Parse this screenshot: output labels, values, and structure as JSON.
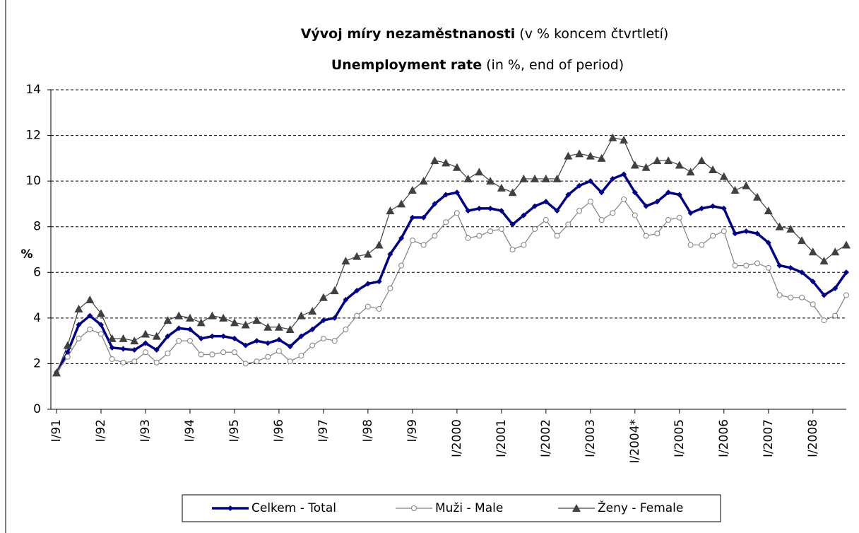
{
  "chart_data": {
    "type": "line",
    "title": "Vývoj míry nezaměstnanosti",
    "title_note": "(v % koncem čtvrtletí)",
    "subtitle": "Unemployment rate",
    "subtitle_note": "(in %, end of period)",
    "y_label": "%",
    "categories": [
      "I/91",
      null,
      null,
      null,
      "I/92",
      null,
      null,
      null,
      "I/93",
      null,
      null,
      null,
      "I/94",
      null,
      null,
      null,
      "I/95",
      null,
      null,
      null,
      "I/96",
      null,
      null,
      null,
      "I/97",
      null,
      null,
      null,
      "I/98",
      null,
      null,
      null,
      "I/99",
      null,
      null,
      null,
      "I/2000",
      null,
      null,
      null,
      "I/2001",
      null,
      null,
      null,
      "I/2002",
      null,
      null,
      null,
      "I/2003",
      null,
      null,
      null,
      "I/2004*",
      null,
      null,
      null,
      "I/2005",
      null,
      null,
      null,
      "I/2006",
      null,
      null,
      null,
      "I/2007",
      null,
      null,
      null,
      "I/2008",
      null,
      null,
      null
    ],
    "series": [
      {
        "name": "Celkem - Total",
        "color": "#000080",
        "marker": "diamond",
        "values": [
          1.6,
          2.5,
          3.7,
          4.1,
          3.7,
          2.7,
          2.65,
          2.6,
          2.9,
          2.6,
          3.2,
          3.55,
          3.5,
          3.1,
          3.2,
          3.2,
          3.1,
          2.8,
          3.0,
          2.9,
          3.05,
          2.75,
          3.2,
          3.5,
          3.9,
          4.0,
          4.8,
          5.2,
          5.5,
          5.6,
          6.8,
          7.5,
          8.4,
          8.4,
          9.0,
          9.4,
          9.5,
          8.7,
          8.8,
          8.8,
          8.7,
          8.1,
          8.5,
          8.9,
          9.1,
          8.7,
          9.4,
          9.8,
          10.0,
          9.5,
          10.1,
          10.3,
          9.5,
          8.9,
          9.1,
          9.5,
          9.4,
          8.6,
          8.8,
          8.9,
          8.8,
          7.7,
          7.8,
          7.7,
          7.3,
          6.3,
          6.2,
          6.0,
          5.6,
          5.0,
          5.3,
          6.0
        ]
      },
      {
        "name": "Muži - Male",
        "color": "#808080",
        "marker": "circle",
        "values": [
          1.6,
          2.3,
          3.1,
          3.5,
          3.3,
          2.2,
          2.05,
          2.1,
          2.5,
          2.05,
          2.45,
          3.0,
          3.0,
          2.4,
          2.4,
          2.5,
          2.5,
          2.0,
          2.1,
          2.3,
          2.55,
          2.1,
          2.35,
          2.8,
          3.1,
          3.0,
          3.5,
          4.1,
          4.5,
          4.4,
          5.3,
          6.3,
          7.4,
          7.2,
          7.6,
          8.2,
          8.6,
          7.5,
          7.6,
          7.8,
          7.9,
          7.0,
          7.2,
          7.9,
          8.3,
          7.6,
          8.1,
          8.7,
          9.1,
          8.3,
          8.6,
          9.2,
          8.5,
          7.6,
          7.7,
          8.3,
          8.4,
          7.2,
          7.2,
          7.6,
          7.8,
          6.3,
          6.3,
          6.4,
          6.2,
          5.0,
          4.9,
          4.9,
          4.6,
          3.9,
          4.1,
          5.0
        ]
      },
      {
        "name": "Ženy - Female",
        "color": "#404040",
        "marker": "triangle",
        "values": [
          1.6,
          2.8,
          4.4,
          4.8,
          4.2,
          3.1,
          3.1,
          3.0,
          3.3,
          3.2,
          3.9,
          4.1,
          4.0,
          3.8,
          4.1,
          4.0,
          3.8,
          3.7,
          3.9,
          3.6,
          3.6,
          3.5,
          4.1,
          4.3,
          4.9,
          5.2,
          6.5,
          6.7,
          6.8,
          7.2,
          8.7,
          9.0,
          9.6,
          10.0,
          10.9,
          10.8,
          10.6,
          10.1,
          10.4,
          10.0,
          9.7,
          9.5,
          10.1,
          10.1,
          10.1,
          10.1,
          11.1,
          11.2,
          11.1,
          11.0,
          11.9,
          11.8,
          10.7,
          10.6,
          10.9,
          10.9,
          10.7,
          10.4,
          10.9,
          10.5,
          10.2,
          9.6,
          9.8,
          9.3,
          8.7,
          8.0,
          7.9,
          7.4,
          6.9,
          6.5,
          6.9,
          7.2
        ]
      }
    ],
    "ylim": [
      0,
      14
    ],
    "yticks": [
      0,
      2,
      4,
      6,
      8,
      10,
      12,
      14
    ],
    "grid": true
  }
}
